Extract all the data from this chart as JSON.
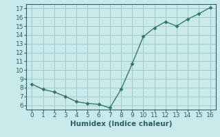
{
  "x": [
    0,
    1,
    2,
    3,
    4,
    5,
    6,
    7,
    8,
    9,
    10,
    11,
    12,
    13,
    14,
    15,
    16
  ],
  "y": [
    8.4,
    7.8,
    7.5,
    7.0,
    6.4,
    6.2,
    6.1,
    5.7,
    7.8,
    10.7,
    13.8,
    14.8,
    15.5,
    15.0,
    15.8,
    16.4,
    17.1
  ],
  "line_color": "#2d7a6a",
  "marker": "D",
  "marker_size": 2.5,
  "background_color": "#c8eaea",
  "grid_color": "#a0c8c8",
  "xlabel": "Humidex (Indice chaleur)",
  "ylabel": "",
  "xlim": [
    -0.5,
    16.5
  ],
  "ylim": [
    5.5,
    17.5
  ],
  "xticks": [
    0,
    1,
    2,
    3,
    4,
    5,
    6,
    7,
    8,
    9,
    10,
    11,
    12,
    13,
    14,
    15,
    16
  ],
  "yticks": [
    6,
    7,
    8,
    9,
    10,
    11,
    12,
    13,
    14,
    15,
    16,
    17
  ],
  "xlabel_fontsize": 7.5,
  "tick_fontsize": 6.5,
  "line_width": 1.0,
  "text_color": "#2a6060"
}
